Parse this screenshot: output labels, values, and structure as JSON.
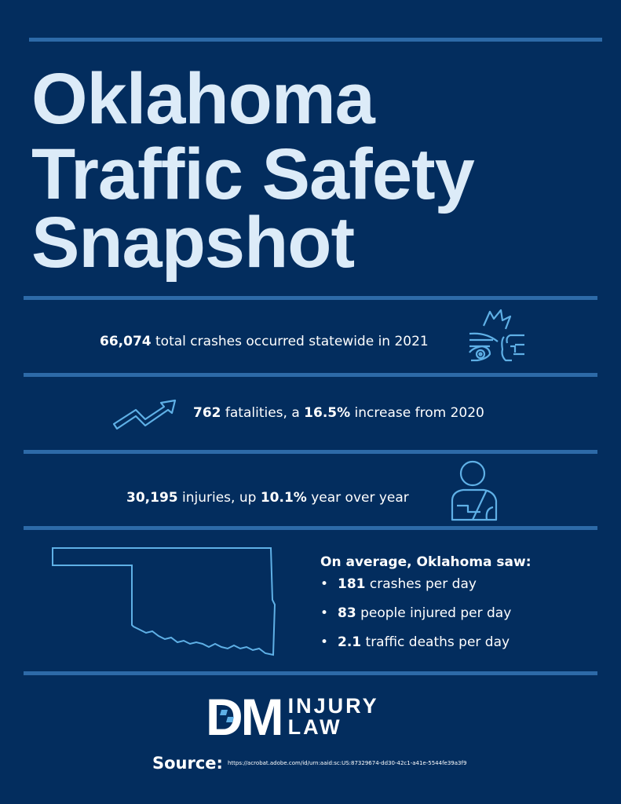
{
  "title": {
    "line1": "Oklahoma",
    "line2": "Traffic Safety",
    "line3": "Snapshot"
  },
  "stats": [
    {
      "bold": "66,074",
      "text": " total crashes occurred statewide in 2021",
      "icon": "car-crash-icon"
    },
    {
      "bold": "762",
      "text": " fatalities, a ",
      "bold2": "16.5%",
      "text2": " increase from 2020",
      "icon": "trend-up-arrow-icon"
    },
    {
      "bold": "30,195",
      "text": " injuries, up ",
      "bold2": "10.1%",
      "text2": " year over year",
      "icon": "injured-person-icon"
    }
  ],
  "average": {
    "heading": "On average, Oklahoma saw:",
    "items": [
      {
        "bold": "181",
        "text": " crashes per day"
      },
      {
        "bold": "83",
        "text": " people injured per day"
      },
      {
        "bold": "2.1",
        "text": " traffic deaths per day"
      }
    ]
  },
  "logo": {
    "mark": "DM",
    "line1": "INJURY",
    "line2": "LAW"
  },
  "source": {
    "label": "Source:",
    "url": "https://acrobat.adobe.com/id/urn:aaid:sc:US:87329674-dd30-42c1-a41e-5544fe39a3f9"
  },
  "colors": {
    "background": "#032d5e",
    "rule": "#2d6aa8",
    "icon": "#5fb0e6",
    "title": "#dcebf8"
  }
}
